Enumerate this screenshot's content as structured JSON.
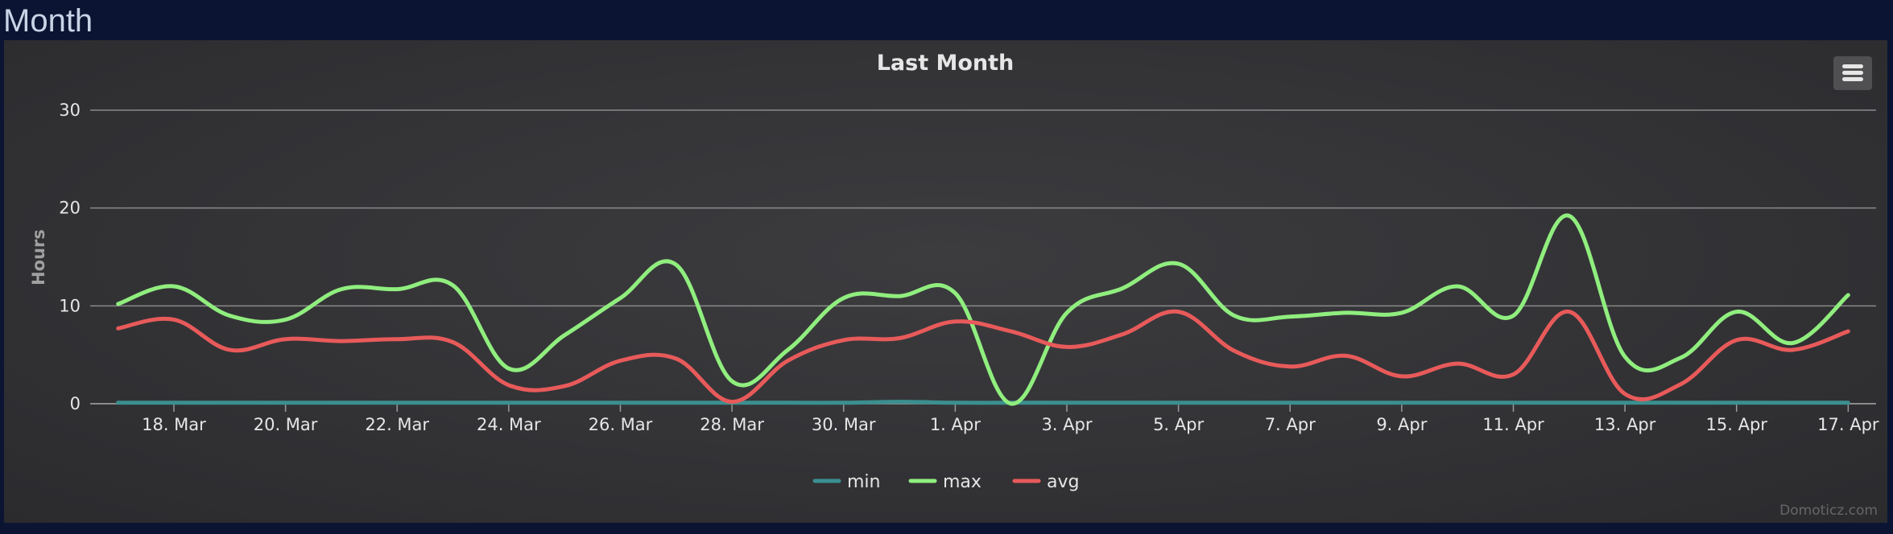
{
  "page": {
    "section_title": "Month"
  },
  "menu": {
    "icon": "hamburger-menu-icon"
  },
  "credit": "Domoticz.com",
  "colors": {
    "min": "#3b8f8f",
    "max": "#90ee7e",
    "avg": "#e85a5a",
    "grid": "#8a8a8a",
    "text": "#e6e6e6",
    "axis_title": "#a0a0a0"
  },
  "chart_data": {
    "type": "line",
    "title": "Last Month",
    "ylabel": "Hours",
    "xlabel": "",
    "ylim": [
      0,
      30
    ],
    "yticks": [
      0,
      10,
      20,
      30
    ],
    "grid": true,
    "legend": "bottom-center",
    "xticks": [
      "18. Mar",
      "20. Mar",
      "22. Mar",
      "24. Mar",
      "26. Mar",
      "28. Mar",
      "30. Mar",
      "1. Apr",
      "3. Apr",
      "5. Apr",
      "7. Apr",
      "9. Apr",
      "11. Apr",
      "13. Apr",
      "15. Apr",
      "17. Apr"
    ],
    "x": [
      "17. Mar",
      "18. Mar",
      "19. Mar",
      "20. Mar",
      "21. Mar",
      "22. Mar",
      "23. Mar",
      "24. Mar",
      "25. Mar",
      "26. Mar",
      "27. Mar",
      "28. Mar",
      "29. Mar",
      "30. Mar",
      "31. Mar",
      "1. Apr",
      "2. Apr",
      "3. Apr",
      "4. Apr",
      "5. Apr",
      "6. Apr",
      "7. Apr",
      "8. Apr",
      "9. Apr",
      "10. Apr",
      "11. Apr",
      "12. Apr",
      "13. Apr",
      "14. Apr",
      "15. Apr",
      "16. Apr",
      "17. Apr"
    ],
    "series": [
      {
        "name": "min",
        "values": [
          0.1,
          0.1,
          0.1,
          0.1,
          0.1,
          0.1,
          0.1,
          0.1,
          0.1,
          0.1,
          0.1,
          0.1,
          0.1,
          0.1,
          0.2,
          0.1,
          0.1,
          0.1,
          0.1,
          0.1,
          0.1,
          0.1,
          0.1,
          0.1,
          0.1,
          0.1,
          0.1,
          0.1,
          0.1,
          0.1,
          0.1,
          0.1
        ]
      },
      {
        "name": "max",
        "values": [
          10.2,
          12.0,
          9.0,
          8.6,
          11.7,
          11.7,
          12.1,
          3.6,
          7.0,
          10.8,
          14.2,
          2.3,
          5.5,
          10.8,
          11.0,
          11.3,
          0.0,
          9.3,
          11.8,
          14.3,
          9.0,
          8.9,
          9.3,
          9.3,
          12.0,
          9.0,
          19.2,
          4.8,
          4.7,
          9.4,
          6.2,
          11.1
        ]
      },
      {
        "name": "avg",
        "values": [
          7.7,
          8.6,
          5.5,
          6.6,
          6.4,
          6.6,
          6.3,
          1.9,
          1.8,
          4.4,
          4.6,
          0.2,
          4.4,
          6.5,
          6.7,
          8.4,
          7.4,
          5.8,
          7.1,
          9.4,
          5.4,
          3.8,
          4.9,
          2.8,
          4.1,
          3.0,
          9.4,
          1.0,
          2.0,
          6.5,
          5.5,
          7.4
        ]
      }
    ]
  }
}
